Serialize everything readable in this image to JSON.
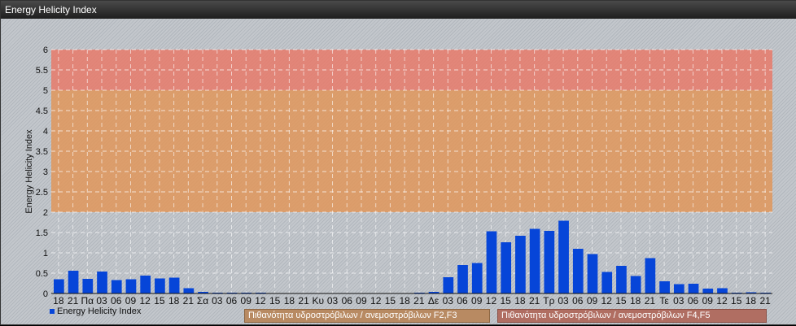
{
  "window": {
    "title": "Energy Helicity Index"
  },
  "chart_data": {
    "type": "bar",
    "title": "",
    "ylabel": "Energy Helicity Index",
    "xlabel": "",
    "ylim": [
      0,
      6
    ],
    "yticks": [
      "0",
      "0.5",
      "1",
      "1.5",
      "2",
      "2.5",
      "3",
      "3.5",
      "4",
      "4.5",
      "5",
      "5.5",
      "6"
    ],
    "grid": true,
    "legend_placement": "bottom-left",
    "bar_color": "#0645d8",
    "bands": [
      {
        "from": 2,
        "to": 5,
        "color": "#e0965a",
        "label": "Πιθανότητα υδροστρόβιλων / ανεμοστρόβιλων F2,F3"
      },
      {
        "from": 5,
        "to": 6,
        "color": "#e87a6a",
        "label": "Πιθανότητα υδροστρόβιλων / ανεμοστρόβιλων F4,F5"
      }
    ],
    "categories": [
      "18",
      "21",
      "Πα",
      "03",
      "06",
      "09",
      "12",
      "15",
      "18",
      "21",
      "Σα",
      "03",
      "06",
      "09",
      "12",
      "15",
      "18",
      "21",
      "Κυ",
      "03",
      "06",
      "09",
      "12",
      "15",
      "18",
      "21",
      "Δε",
      "03",
      "06",
      "09",
      "12",
      "15",
      "18",
      "21",
      "Τρ",
      "03",
      "06",
      "09",
      "12",
      "15",
      "18",
      "21",
      "Τε",
      "03",
      "06",
      "09",
      "12",
      "15",
      "18",
      "21"
    ],
    "series": [
      {
        "name": "Energy Helicity Index",
        "values": [
          0.35,
          0.56,
          0.36,
          0.54,
          0.33,
          0.35,
          0.44,
          0.37,
          0.39,
          0.13,
          0.04,
          0.02,
          0.02,
          0.02,
          0.02,
          0.01,
          0.01,
          0.01,
          0.01,
          0.01,
          0.01,
          0.01,
          0.01,
          0.01,
          0.01,
          0.02,
          0.04,
          0.4,
          0.7,
          0.75,
          1.53,
          1.26,
          1.42,
          1.59,
          1.54,
          1.79,
          1.1,
          0.97,
          0.53,
          0.68,
          0.43,
          0.87,
          0.3,
          0.23,
          0.24,
          0.12,
          0.13,
          0.02,
          0.03,
          0.02
        ]
      }
    ]
  }
}
